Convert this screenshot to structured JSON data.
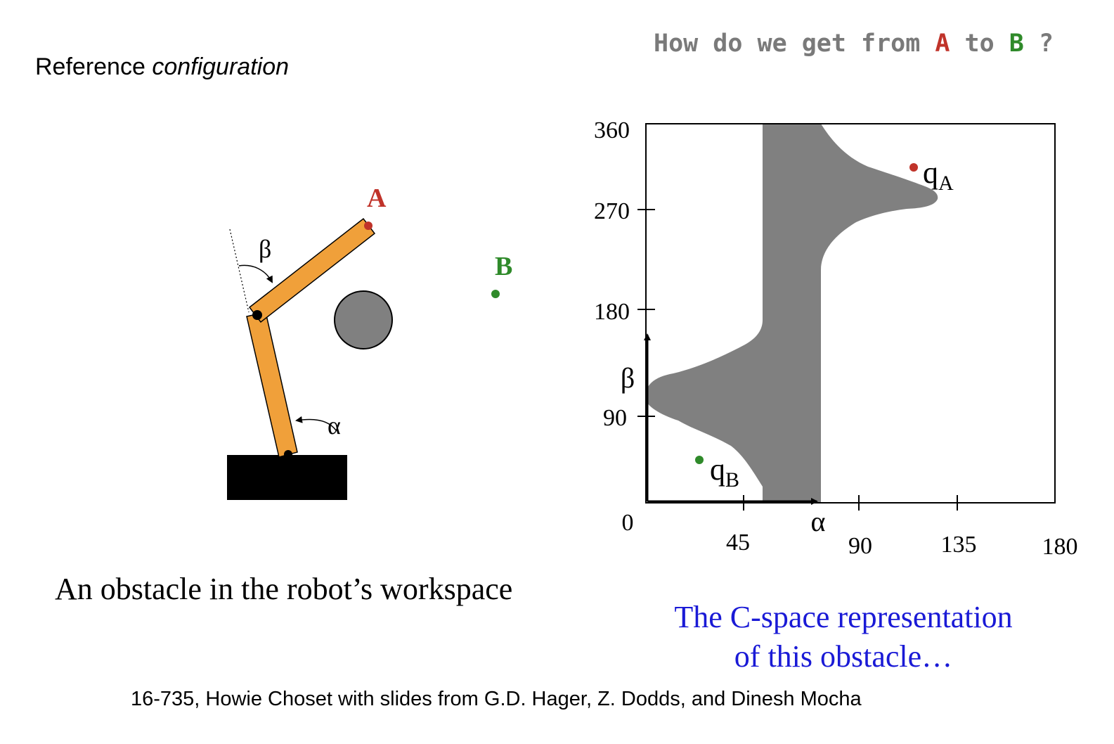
{
  "header": {
    "left_title_plain": "Reference ",
    "left_title_italic": "configuration",
    "question_prefix": "How do we get from ",
    "question_a": "A",
    "question_mid": " to ",
    "question_b": "B",
    "question_suffix": " ?"
  },
  "workspace": {
    "caption": "An obstacle in the robot’s workspace",
    "label_a": "A",
    "label_b": "B",
    "label_alpha": "α",
    "label_beta": "β"
  },
  "cspace": {
    "caption_line1": "The C-space representation",
    "caption_line2": "of this obstacle…",
    "y_axis_symbol": "β",
    "x_axis_symbol": "α",
    "qa_main": "q",
    "qa_sub": "A",
    "qb_main": "q",
    "qb_sub": "B",
    "y_ticks": [
      "0",
      "90",
      "180",
      "270",
      "360"
    ],
    "x_ticks": [
      "45",
      "90",
      "135",
      "180"
    ]
  },
  "colors": {
    "point_a": "#c0332a",
    "point_b": "#2f8a2a",
    "arm": "#f0a03a",
    "obstacle": "#808080",
    "caption_blue": "#1a1ad6"
  },
  "footer": {
    "text": "16-735,  Howie Choset with slides from G.D. Hager, Z. Dodds, and Dinesh Mocha"
  }
}
